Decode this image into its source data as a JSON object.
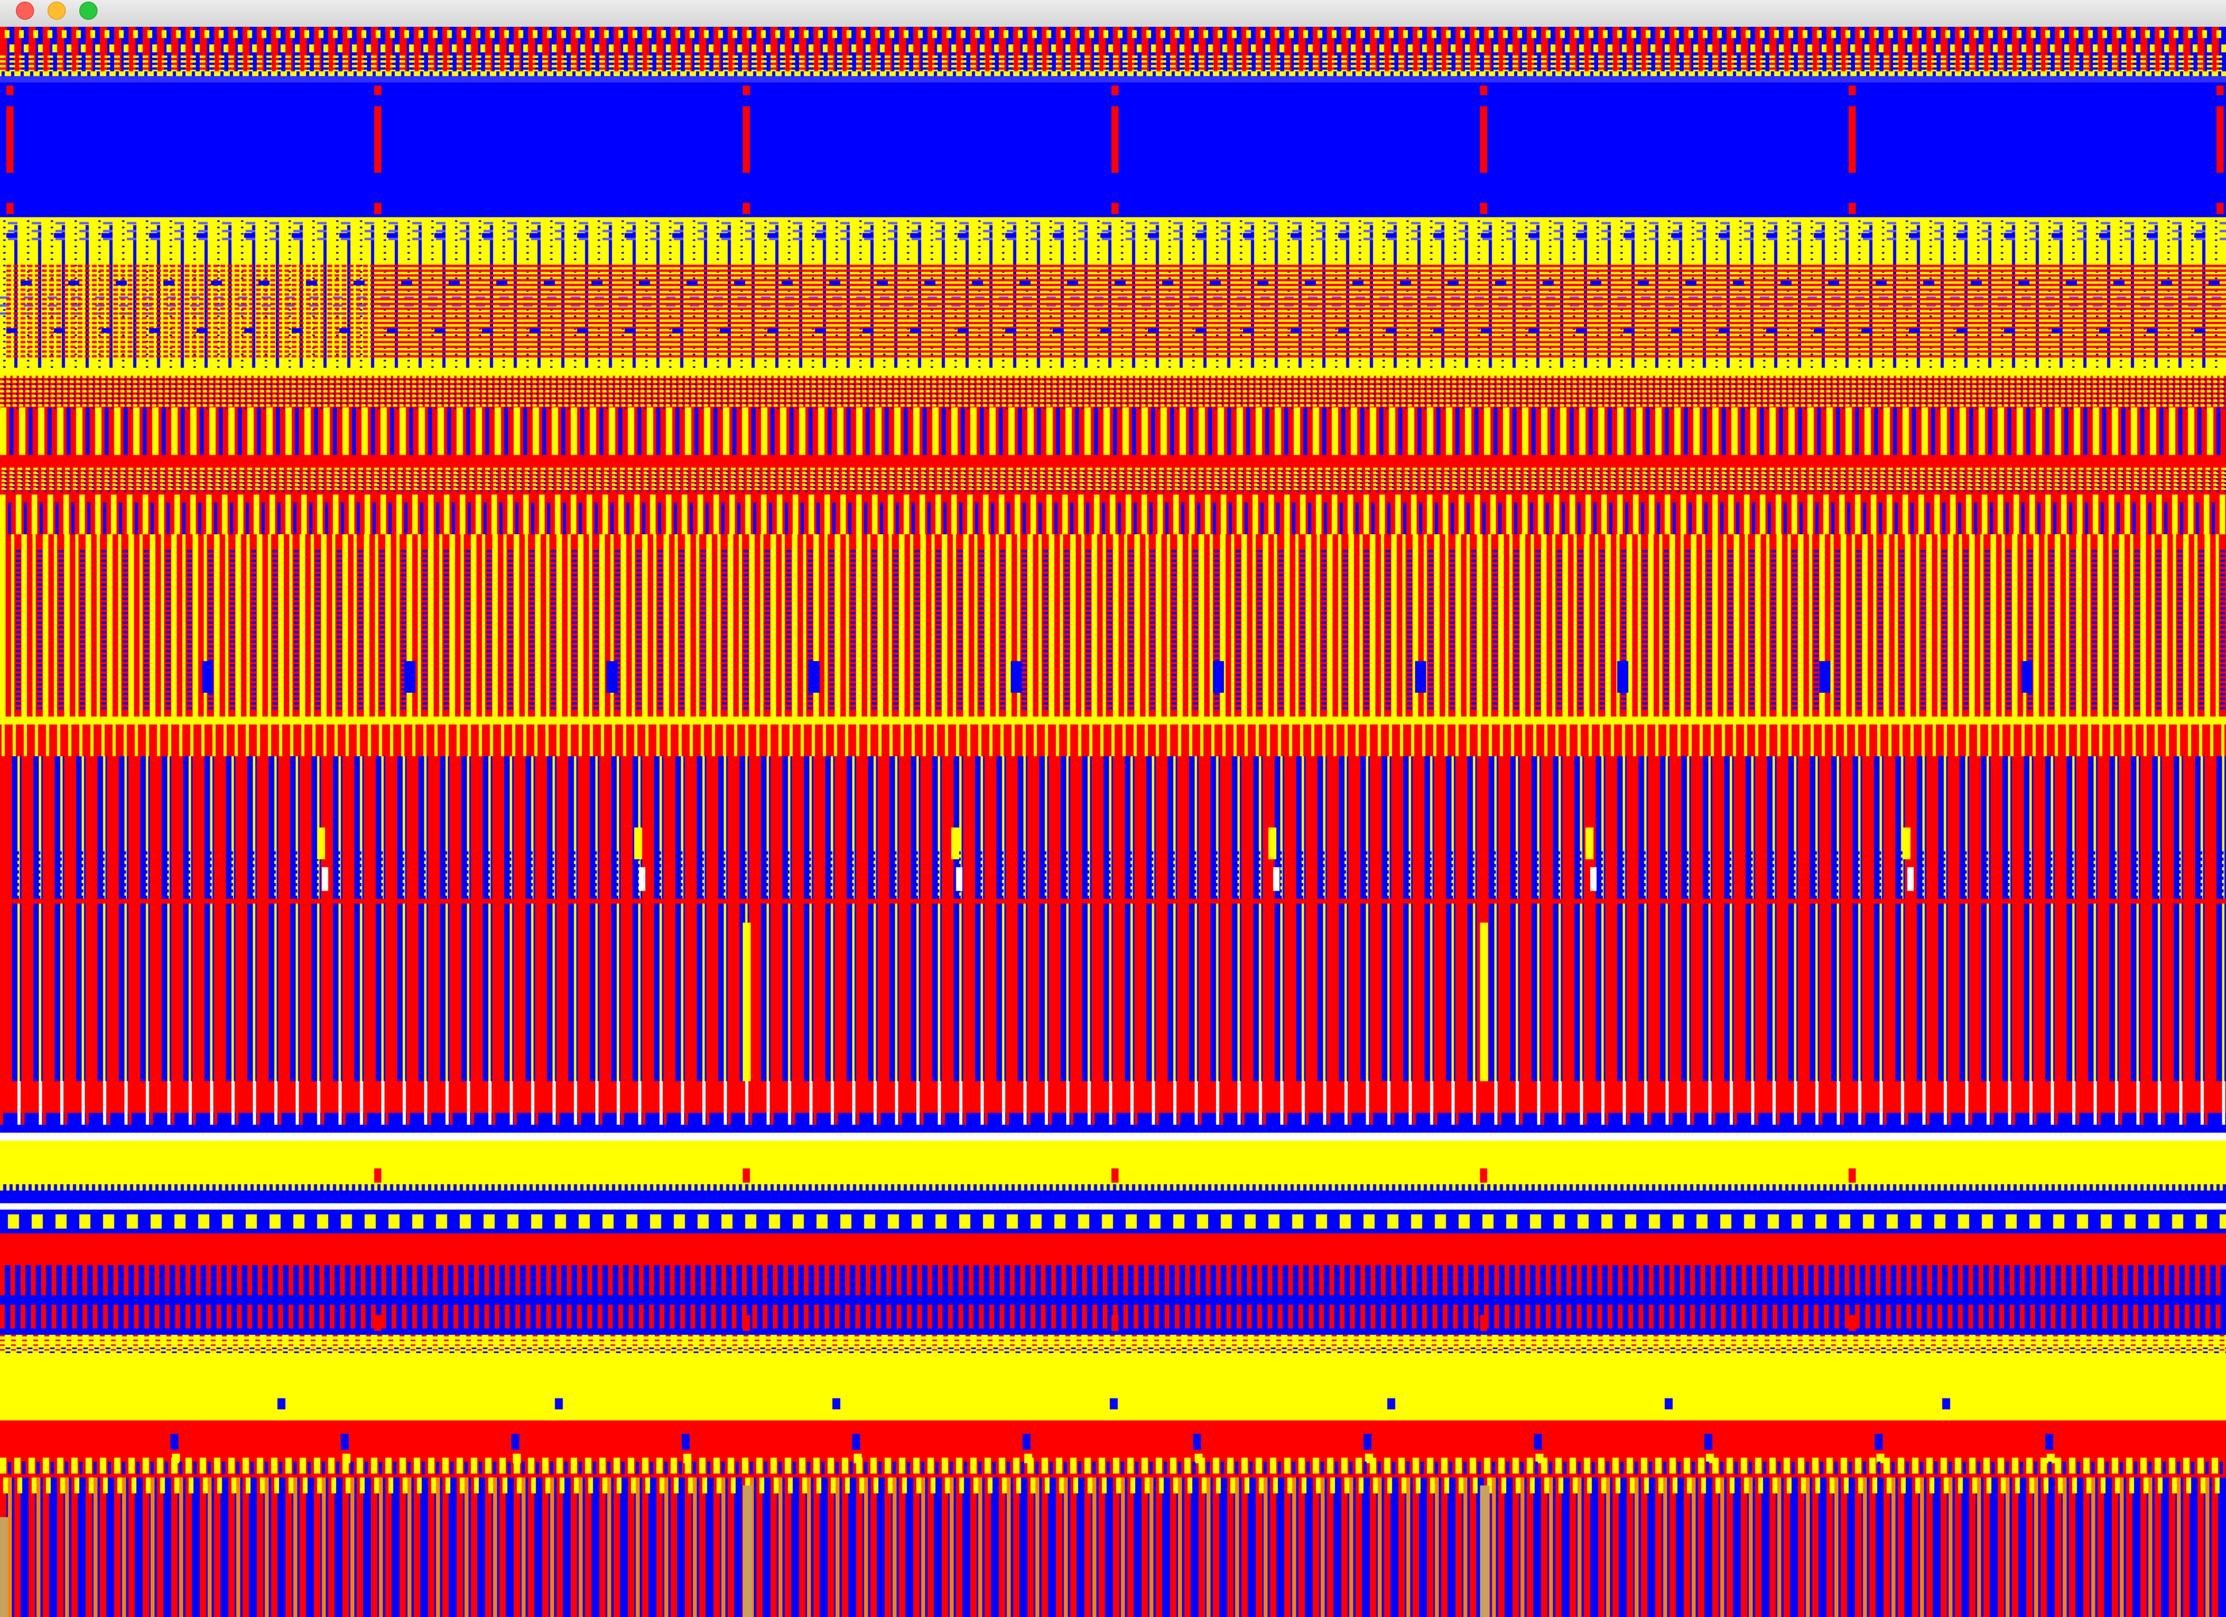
{
  "window": {
    "title": "",
    "buttons": [
      {
        "name": "close",
        "color": "#fe5f57",
        "border": "#e0443e"
      },
      {
        "name": "minimize",
        "color": "#febc2e",
        "border": "#dea123"
      },
      {
        "name": "zoom",
        "color": "#28c840",
        "border": "#1aab29"
      }
    ]
  },
  "canvas": {
    "palette": {
      "red": "#ff0000",
      "blue": "#0000ff",
      "yellow": "#ffff00",
      "orange": "#ff8000",
      "white": "#ffffff",
      "tan": "#c8a060"
    }
  }
}
